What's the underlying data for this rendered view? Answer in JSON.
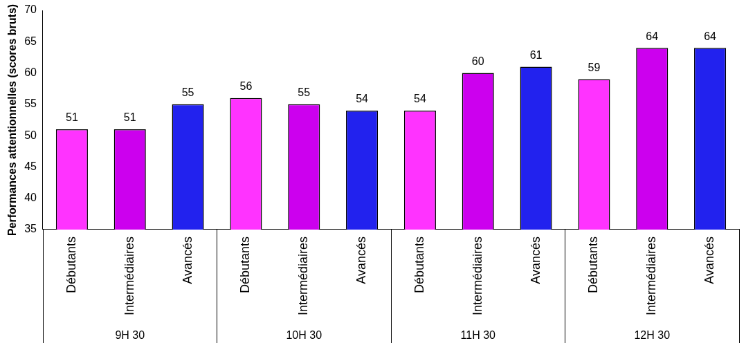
{
  "chart_data": {
    "type": "bar",
    "ylabel": "Performances attentionnelles (scores bruts)",
    "categories": [
      "Débutants",
      "Intermédiaires",
      "Avancés",
      "Débutants",
      "Intermédiaires",
      "Avancés",
      "Débutants",
      "Intermédiaires",
      "Avancés",
      "Débutants",
      "Intermédiaires",
      "Avancés"
    ],
    "values": [
      51,
      51,
      55,
      56,
      55,
      54,
      54,
      60,
      61,
      59,
      64,
      64
    ],
    "colors": [
      "#ff33ff",
      "#cc00ee",
      "#2222ee",
      "#ff33ff",
      "#cc00ee",
      "#2222ee",
      "#ff33ff",
      "#cc00ee",
      "#2222ee",
      "#ff33ff",
      "#cc00ee",
      "#2222ee"
    ],
    "ylim": [
      35,
      70
    ],
    "yticks": [
      35,
      40,
      45,
      50,
      55,
      60,
      65,
      70
    ],
    "data_labels": true,
    "annotations": [
      "9H 30",
      "10H 30",
      "11H 30",
      "12H 30"
    ]
  }
}
